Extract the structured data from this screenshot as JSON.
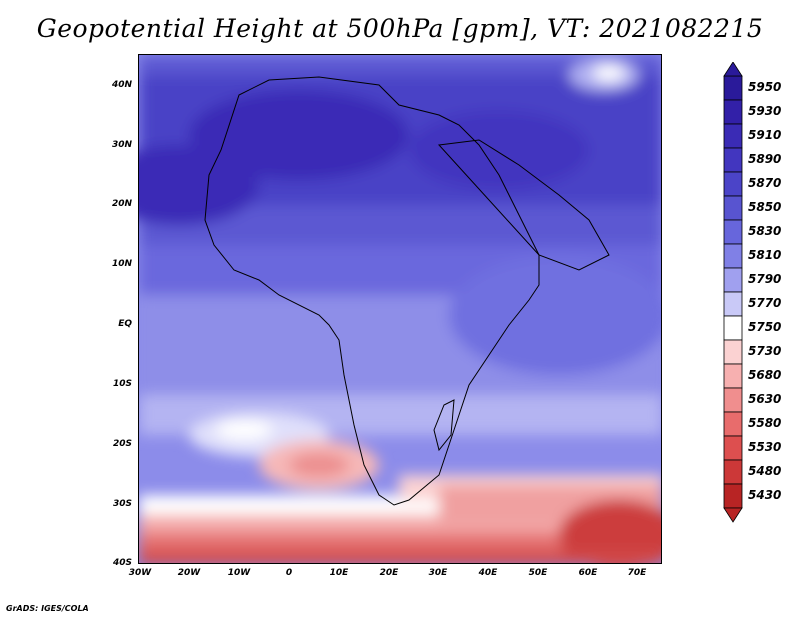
{
  "title": "Geopotential Height at 500hPa [gpm], VT: 2021082215",
  "footer": "GrADS: IGES/COLA",
  "map": {
    "projection": "lat-lon",
    "lon_range": [
      -30,
      75
    ],
    "lat_range": [
      -40,
      45
    ],
    "lat_labels": [
      "40N",
      "30N",
      "20N",
      "10N",
      "EQ",
      "10S",
      "20S",
      "30S",
      "40S"
    ],
    "lon_labels": [
      "30W",
      "20W",
      "10W",
      "0",
      "10E",
      "20E",
      "30E",
      "40E",
      "50E",
      "60E",
      "70E"
    ],
    "field": "500hPa geopotential height",
    "units": "gpm",
    "valid_time": "2021082215"
  },
  "colorbar": {
    "levels": [
      "5950",
      "5930",
      "5910",
      "5890",
      "5870",
      "5850",
      "5830",
      "5810",
      "5790",
      "5770",
      "5750",
      "5730",
      "5680",
      "5630",
      "5580",
      "5530",
      "5480",
      "5430"
    ],
    "colors": [
      "#2a1a9a",
      "#3220a8",
      "#3a2bb5",
      "#4236bf",
      "#4b44c8",
      "#5854d0",
      "#6766dc",
      "#8080e6",
      "#a0a0ef",
      "#c9c9f7",
      "#ffffff",
      "#fbd2d2",
      "#f7b0b0",
      "#f08e8e",
      "#e86c6c",
      "#dd4f4f",
      "#cc3838",
      "#b82424"
    ]
  }
}
